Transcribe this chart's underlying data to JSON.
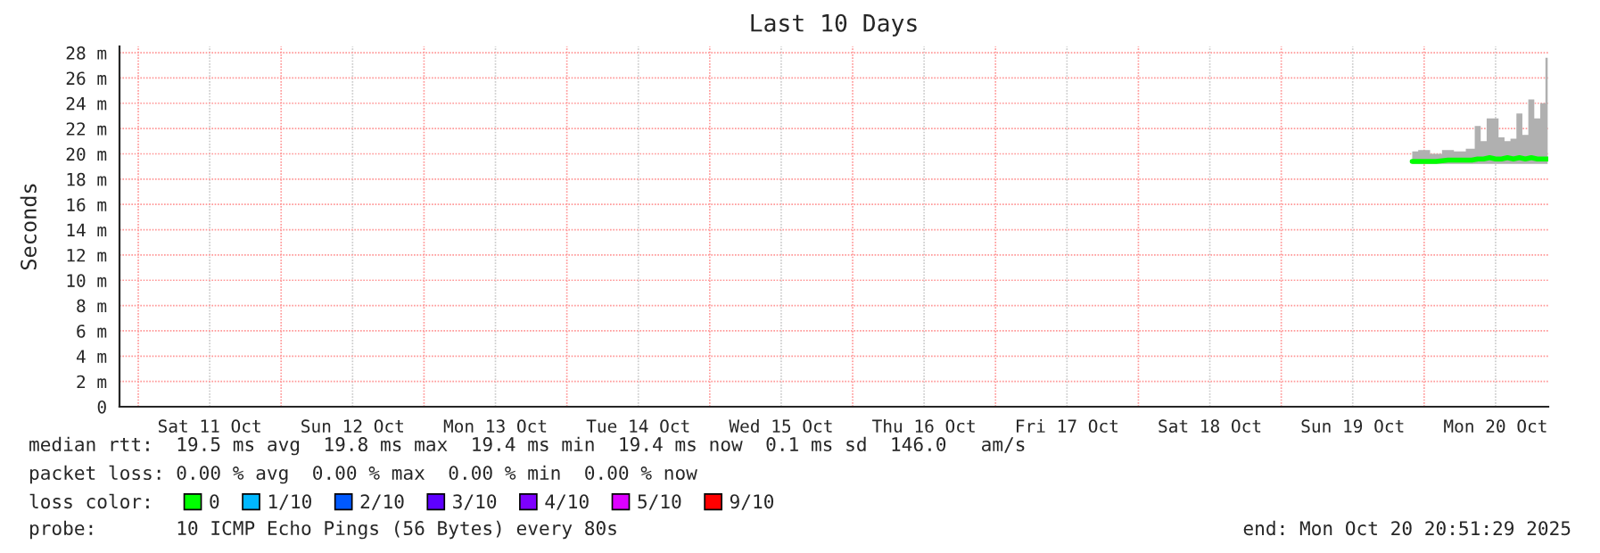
{
  "chart_data": {
    "type": "line",
    "title": "Last 10 Days",
    "ylabel": "Seconds",
    "xlim": [
      "2025-10-10T20:51",
      "2025-10-20T20:51"
    ],
    "xticks": [
      {
        "value": "2025-10-11T00:00",
        "label": null
      },
      {
        "value": "2025-10-11T12:00",
        "label": "Sat 11 Oct"
      },
      {
        "value": "2025-10-12T00:00",
        "label": null
      },
      {
        "value": "2025-10-12T12:00",
        "label": "Sun 12 Oct"
      },
      {
        "value": "2025-10-13T00:00",
        "label": null
      },
      {
        "value": "2025-10-13T12:00",
        "label": "Mon 13 Oct"
      },
      {
        "value": "2025-10-14T00:00",
        "label": null
      },
      {
        "value": "2025-10-14T12:00",
        "label": "Tue 14 Oct"
      },
      {
        "value": "2025-10-15T00:00",
        "label": null
      },
      {
        "value": "2025-10-15T12:00",
        "label": "Wed 15 Oct"
      },
      {
        "value": "2025-10-16T00:00",
        "label": null
      },
      {
        "value": "2025-10-16T12:00",
        "label": "Thu 16 Oct"
      },
      {
        "value": "2025-10-17T00:00",
        "label": null
      },
      {
        "value": "2025-10-17T12:00",
        "label": "Fri 17 Oct"
      },
      {
        "value": "2025-10-18T00:00",
        "label": null
      },
      {
        "value": "2025-10-18T12:00",
        "label": "Sat 18 Oct"
      },
      {
        "value": "2025-10-19T00:00",
        "label": null
      },
      {
        "value": "2025-10-19T12:00",
        "label": "Sun 19 Oct"
      },
      {
        "value": "2025-10-20T00:00",
        "label": null
      },
      {
        "value": "2025-10-20T12:00",
        "label": "Mon 20 Oct"
      }
    ],
    "ylim": [
      0,
      28.5
    ],
    "yticks": [
      0,
      {
        "value": 2,
        "label": "2 m"
      },
      {
        "value": 4,
        "label": "4 m"
      },
      {
        "value": 6,
        "label": "6 m"
      },
      {
        "value": 8,
        "label": "8 m"
      },
      {
        "value": 10,
        "label": "10 m"
      },
      {
        "value": 12,
        "label": "12 m"
      },
      {
        "value": 14,
        "label": "14 m"
      },
      {
        "value": 16,
        "label": "16 m"
      },
      {
        "value": 18,
        "label": "18 m"
      },
      {
        "value": 20,
        "label": "20 m"
      },
      {
        "value": 22,
        "label": "22 m"
      },
      {
        "value": 24,
        "label": "24 m"
      },
      {
        "value": 26,
        "label": "26 m"
      },
      {
        "value": 28,
        "label": "28 m"
      }
    ],
    "grid": true,
    "legend": "bottom",
    "legend_title": "loss color:",
    "series": [
      {
        "name": "0",
        "color": "#00ff00",
        "x": [
          "2025-10-19T22:00",
          "2025-10-20T00:00",
          "2025-10-20T02:00",
          "2025-10-20T04:00",
          "2025-10-20T06:00",
          "2025-10-20T08:00",
          "2025-10-20T09:00",
          "2025-10-20T10:00",
          "2025-10-20T11:00",
          "2025-10-20T12:00",
          "2025-10-20T13:00",
          "2025-10-20T14:00",
          "2025-10-20T15:00",
          "2025-10-20T16:00",
          "2025-10-20T17:00",
          "2025-10-20T18:00",
          "2025-10-20T19:00",
          "2025-10-20T20:00",
          "2025-10-20T20:45"
        ],
        "values": [
          19.4,
          19.4,
          19.4,
          19.5,
          19.5,
          19.5,
          19.6,
          19.6,
          19.7,
          19.6,
          19.6,
          19.7,
          19.6,
          19.7,
          19.6,
          19.7,
          19.6,
          19.6,
          19.6
        ],
        "lower": [
          19.2,
          19.2,
          19.2,
          19.2,
          19.2,
          19.2,
          19.2,
          19.2,
          19.2,
          19.2,
          19.2,
          19.2,
          19.2,
          19.2,
          19.2,
          19.2,
          19.2,
          19.2,
          19.2
        ],
        "upper": [
          20.2,
          20.3,
          20.0,
          20.3,
          20.2,
          20.4,
          22.2,
          21.0,
          22.8,
          22.8,
          21.3,
          21.0,
          21.2,
          23.2,
          21.5,
          24.3,
          22.8,
          24.0,
          27.6
        ]
      },
      {
        "name": "1/10",
        "color": "#00b8ff"
      },
      {
        "name": "2/10",
        "color": "#0059ff"
      },
      {
        "name": "3/10",
        "color": "#5e00ff"
      },
      {
        "name": "4/10",
        "color": "#7e00ff"
      },
      {
        "name": "5/10",
        "color": "#dd00ff"
      },
      {
        "name": "9/10",
        "color": "#ff0000"
      }
    ],
    "annotations": [
      "median rtt:  19.5 ms avg  19.8 ms max  19.4 ms min  19.4 ms now  0.1 ms sd  146.0   am/s",
      "packet loss: 0.00 % avg  0.00 % max  0.00 % min  0.00 % now",
      "probe:       10 ICMP Echo Pings (56 Bytes) every 80s",
      "end: Mon Oct 20 20:51:29 2025"
    ]
  }
}
